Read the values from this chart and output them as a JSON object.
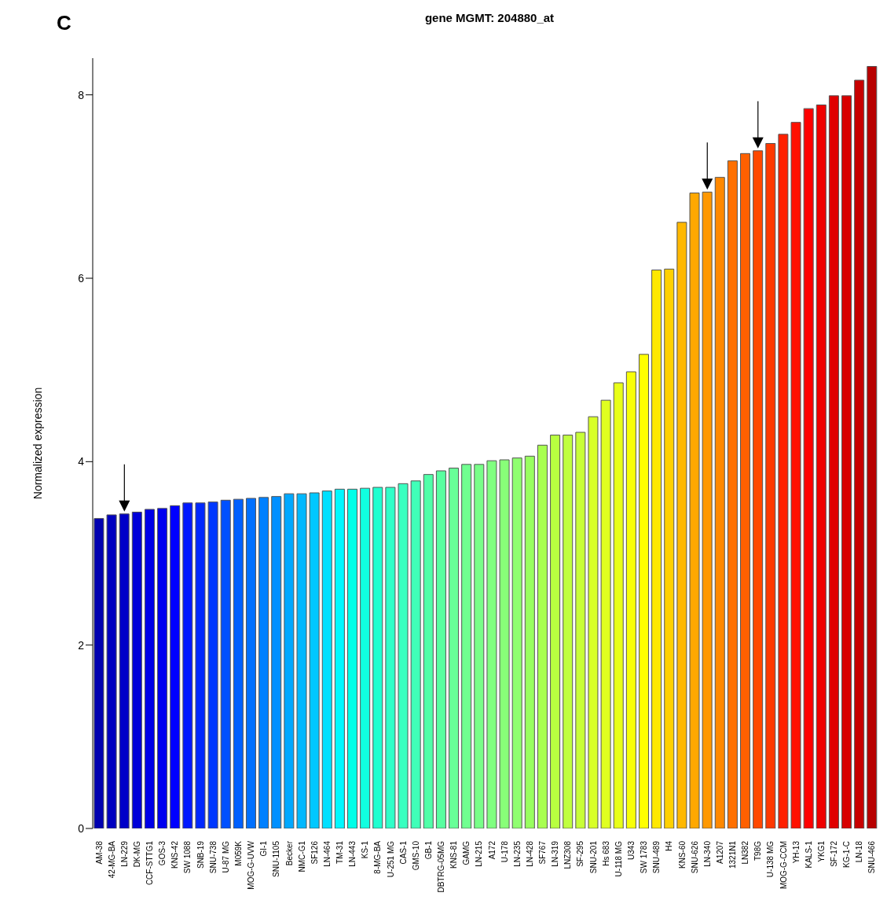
{
  "chart_data": {
    "type": "bar",
    "title": "gene MGMT: 204880_at",
    "ylabel": "Normalized expression",
    "annotations": [
      "C"
    ],
    "categories": [
      "AM-38",
      "42-MG-BA",
      "LN-229",
      "DK-MG",
      "CCF-STTG1",
      "GOS-3",
      "KNS-42",
      "SW 1088",
      "SNB-19",
      "SNU-738",
      "U-87 MG",
      "M059K",
      "MOG-G-UVW",
      "GI-1",
      "SNU-1105",
      "Becker",
      "NMC-G1",
      "SF126",
      "LN-464",
      "TM-31",
      "LN-443",
      "KS-1",
      "8-MG-BA",
      "U-251 MG",
      "CAS-1",
      "GMS-10",
      "GB-1",
      "DBTRG-05MG",
      "KNS-81",
      "GAMG",
      "LN-215",
      "A172",
      "U-178",
      "LN-235",
      "LN-428",
      "SF767",
      "LN-319",
      "LNZ308",
      "SF-295",
      "SNU-201",
      "Hs 683",
      "U-118 MG",
      "U343",
      "SW 1783",
      "SNU-489",
      "H4",
      "KNS-60",
      "SNU-626",
      "LN-340",
      "A1207",
      "1321N1",
      "LN382",
      "T98G",
      "U-138 MG",
      "MOG-G-CCM",
      "YH-13",
      "KALS-1",
      "YKG1",
      "SF-172",
      "KG-1-C",
      "LN-18",
      "SNU-466"
    ],
    "values": [
      3.38,
      3.42,
      3.43,
      3.45,
      3.48,
      3.49,
      3.52,
      3.55,
      3.55,
      3.56,
      3.58,
      3.59,
      3.6,
      3.61,
      3.62,
      3.65,
      3.65,
      3.66,
      3.68,
      3.7,
      3.7,
      3.71,
      3.72,
      3.72,
      3.76,
      3.79,
      3.86,
      3.9,
      3.93,
      3.97,
      3.97,
      4.01,
      4.02,
      4.04,
      4.06,
      4.18,
      4.29,
      4.29,
      4.32,
      4.49,
      4.67,
      4.86,
      4.98,
      5.17,
      6.09,
      6.1,
      6.61,
      6.93,
      6.94,
      7.1,
      7.28,
      7.36,
      7.39,
      7.47,
      7.57,
      7.7,
      7.85,
      7.89,
      7.99,
      7.99,
      8.16,
      8.31
    ],
    "colors": [
      "#0000b0",
      "#0000c0",
      "#0000c8",
      "#0000d8",
      "#0000e8",
      "#0000f0",
      "#0000ff",
      "#0018ff",
      "#0028ff",
      "#0038ff",
      "#0050ff",
      "#0060ff",
      "#0070ff",
      "#0080ff",
      "#0090ff",
      "#00a8ff",
      "#00b8ff",
      "#00c8ff",
      "#00e0ff",
      "#00f8ff",
      "#00ffe8",
      "#10ffe0",
      "#20ffd0",
      "#30ffc8",
      "#38ffc0",
      "#40ffb8",
      "#50ffa8",
      "#58ffa0",
      "#68ff98",
      "#70ff90",
      "#78ff88",
      "#80ff80",
      "#88ff78",
      "#90ff70",
      "#98ff60",
      "#a8ff50",
      "#b8ff40",
      "#c0ff40",
      "#c8ff38",
      "#d8ff28",
      "#e0ff20",
      "#e8ff18",
      "#f8ff08",
      "#ffff00",
      "#ffe800",
      "#ffd000",
      "#ffb800",
      "#ffa800",
      "#ff9800",
      "#ff8800",
      "#ff7000",
      "#ff6000",
      "#ff4800",
      "#ff3800",
      "#ff2000",
      "#ff1000",
      "#ff0000",
      "#f00000",
      "#e00000",
      "#d80000",
      "#c80000",
      "#b80000"
    ],
    "ylim": [
      0,
      8.4
    ],
    "yticks": [
      0,
      2,
      4,
      6,
      8
    ]
  }
}
